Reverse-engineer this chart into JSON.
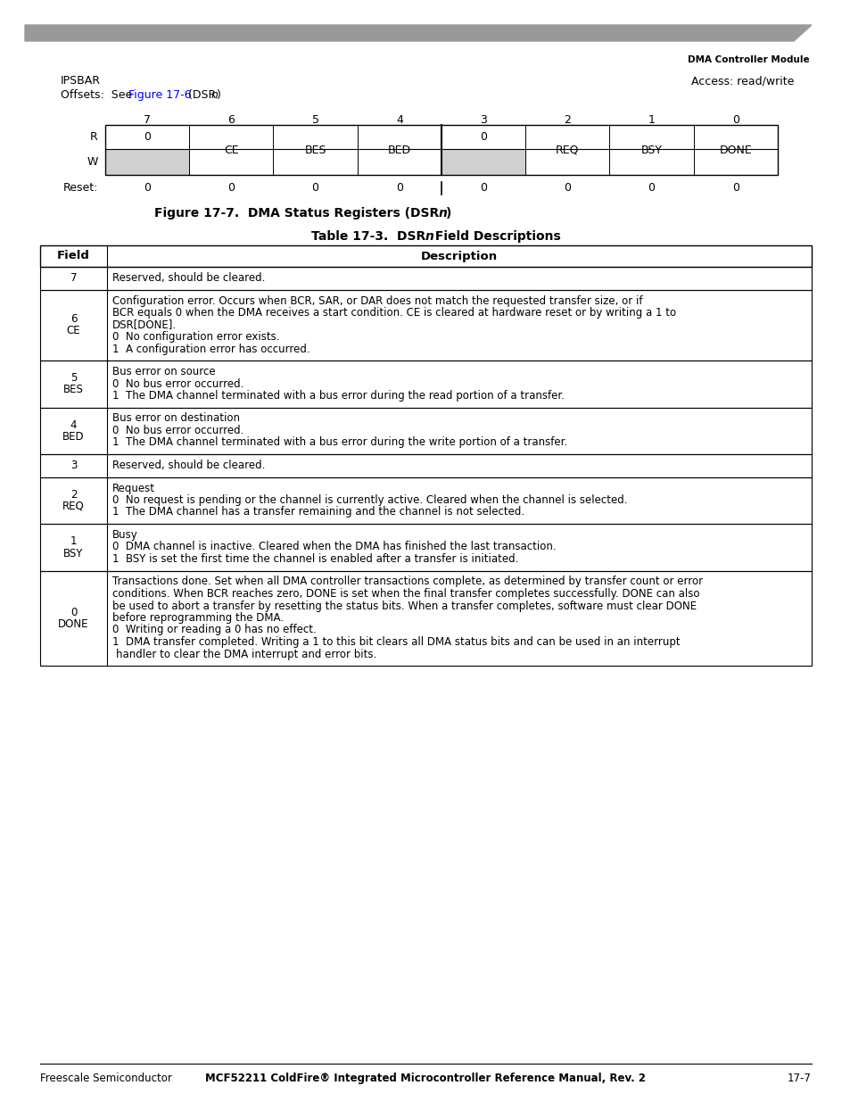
{
  "page_title_right": "DMA Controller Module",
  "header_bar_color": "#999999",
  "ipsbar_text": "IPSBAR",
  "access_text": "Access: read/write",
  "offsets_text_plain": "Offsets:  See ",
  "offsets_link_text": "Figure 17-6",
  "offsets_text_suffix": " (DSR",
  "offsets_italic_n": "n",
  "offsets_text_end": ")",
  "bit_numbers": [
    "7",
    "6",
    "5",
    "4",
    "3",
    "2",
    "1",
    "0"
  ],
  "register_row_R": [
    "0",
    "CE",
    "BES",
    "BED",
    "0",
    "REQ",
    "BSY",
    "DONE"
  ],
  "shaded_cells": [
    0,
    4
  ],
  "reset_values": [
    "0",
    "0",
    "0",
    "0",
    "0",
    "0",
    "0",
    "0"
  ],
  "fig_caption_pre": "Figure 17-7.  DMA Status Registers (DSR",
  "fig_caption_italic": "n",
  "fig_caption_post": ")",
  "table_title_pre": "Table 17-3.  DSR",
  "table_title_italic": "n",
  "table_title_post": " Field Descriptions",
  "table_header_field": "Field",
  "table_header_desc": "Description",
  "table_rows": [
    {
      "field_top": "7",
      "field_bot": "",
      "desc_lines": [
        {
          "text": "Reserved, should be cleared.",
          "indent": 0
        }
      ]
    },
    {
      "field_top": "6",
      "field_bot": "CE",
      "desc_lines": [
        {
          "text": "Configuration error. Occurs when BCR, SAR, or DAR does not match the requested transfer size, or if",
          "indent": 0
        },
        {
          "text": "BCR equals 0 when the DMA receives a start condition. CE is cleared at hardware reset or by writing a 1 to",
          "indent": 0
        },
        {
          "text": "DSR[DONE].",
          "indent": 0
        },
        {
          "text": "0  No configuration error exists.",
          "indent": 0
        },
        {
          "text": "1  A configuration error has occurred.",
          "indent": 0
        }
      ]
    },
    {
      "field_top": "5",
      "field_bot": "BES",
      "desc_lines": [
        {
          "text": "Bus error on source",
          "indent": 0
        },
        {
          "text": "0  No bus error occurred.",
          "indent": 0
        },
        {
          "text": "1  The DMA channel terminated with a bus error during the read portion of a transfer.",
          "indent": 0
        }
      ]
    },
    {
      "field_top": "4",
      "field_bot": "BED",
      "desc_lines": [
        {
          "text": "Bus error on destination",
          "indent": 0
        },
        {
          "text": "0  No bus error occurred.",
          "indent": 0
        },
        {
          "text": "1  The DMA channel terminated with a bus error during the write portion of a transfer.",
          "indent": 0
        }
      ]
    },
    {
      "field_top": "3",
      "field_bot": "",
      "desc_lines": [
        {
          "text": "Reserved, should be cleared.",
          "indent": 0
        }
      ]
    },
    {
      "field_top": "2",
      "field_bot": "REQ",
      "desc_lines": [
        {
          "text": "Request",
          "indent": 0
        },
        {
          "text": "0  No request is pending or the channel is currently active. Cleared when the channel is selected.",
          "indent": 0
        },
        {
          "text": "1  The DMA channel has a transfer remaining and the channel is not selected.",
          "indent": 0
        }
      ]
    },
    {
      "field_top": "1",
      "field_bot": "BSY",
      "desc_lines": [
        {
          "text": "Busy",
          "indent": 0
        },
        {
          "text": "0  DMA channel is inactive. Cleared when the DMA has finished the last transaction.",
          "indent": 0
        },
        {
          "text": "1  BSY is set the first time the channel is enabled after a transfer is initiated.",
          "indent": 0
        }
      ]
    },
    {
      "field_top": "0",
      "field_bot": "DONE",
      "desc_lines": [
        {
          "text": "Transactions done. Set when all DMA controller transactions complete, as determined by transfer count or error",
          "indent": 0
        },
        {
          "text": "conditions. When BCR reaches zero, DONE is set when the final transfer completes successfully. DONE can also",
          "indent": 0
        },
        {
          "text": "be used to abort a transfer by resetting the status bits. When a transfer completes, software must clear DONE",
          "indent": 0
        },
        {
          "text": "before reprogramming the DMA.",
          "indent": 0
        },
        {
          "text": "0  Writing or reading a 0 has no effect.",
          "indent": 0
        },
        {
          "text": "1  DMA transfer completed. Writing a 1 to this bit clears all DMA status bits and can be used in an interrupt",
          "indent": 0
        },
        {
          "text": "handler to clear the DMA interrupt and error bits.",
          "indent": 4
        }
      ]
    }
  ],
  "footer_left": "Freescale Semiconductor",
  "footer_right": "17-7",
  "footer_center": "MCF52211 ColdFire® Integrated Microcontroller Reference Manual, Rev. 2",
  "link_color": "#0000FF",
  "bg_color": "#FFFFFF",
  "cell_shade_color": "#D0D0D0"
}
